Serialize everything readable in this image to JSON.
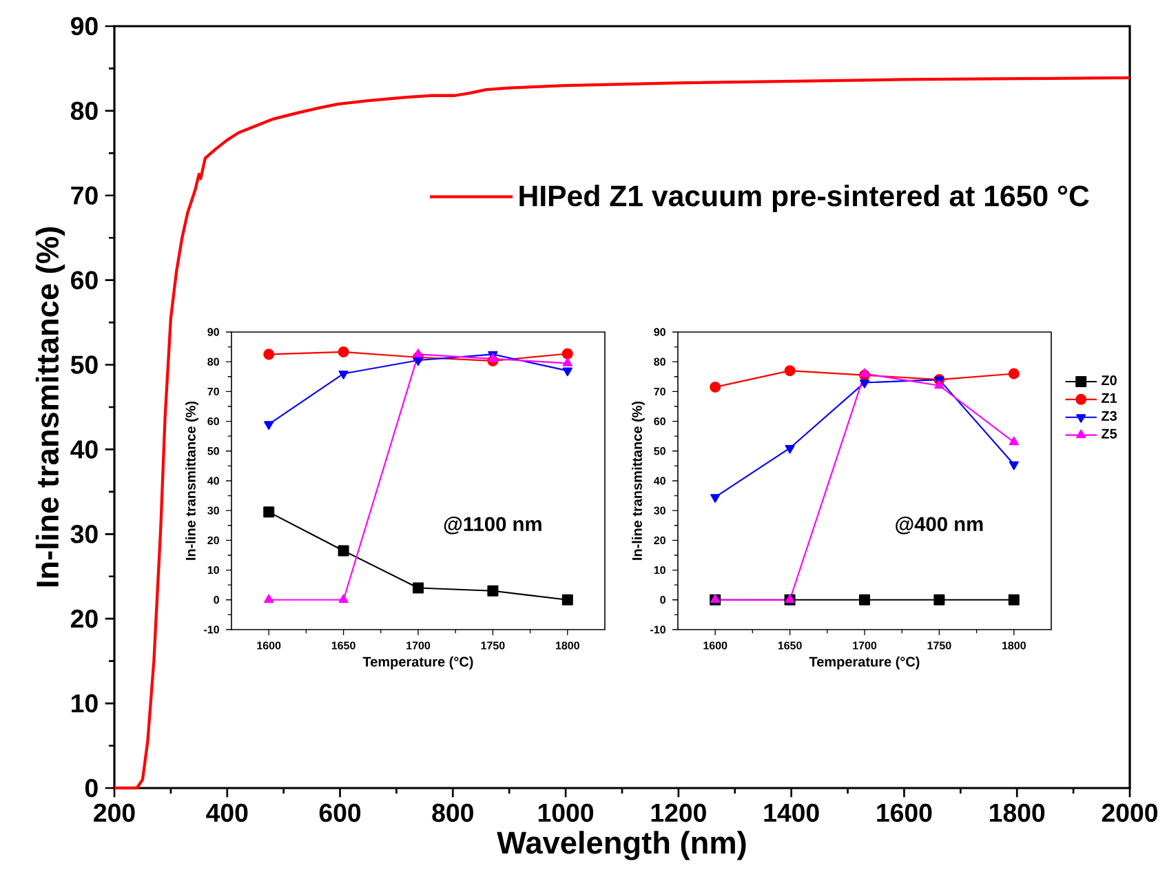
{
  "chart_data": [
    {
      "type": "line",
      "xlabel": "Wavelength (nm)",
      "ylabel": "In-line transmittance (%)",
      "xlim": [
        200,
        2000
      ],
      "ylim": [
        0,
        90
      ],
      "xticks": [
        200,
        400,
        600,
        800,
        1000,
        1200,
        1400,
        1600,
        1800,
        2000
      ],
      "yticks": [
        0,
        10,
        20,
        30,
        40,
        50,
        60,
        70,
        80,
        90
      ],
      "legend": "top right",
      "marker": "none",
      "grid": false,
      "series": [
        {
          "name": "HIPed Z1 vacuum pre-sintered at 1650 °C",
          "color": "#ff0000",
          "x": [
            200,
            240,
            250,
            259,
            270,
            282,
            290,
            300,
            310,
            320,
            330,
            343,
            350,
            353,
            361,
            380,
            399,
            420,
            446,
            480,
            521,
            560,
            596,
            650,
            718,
            760,
            803,
            830,
            859,
            900,
            1000,
            1200,
            1400,
            1600,
            1800,
            2000
          ],
          "values": [
            0,
            0,
            1,
            5.5,
            15,
            30.5,
            44,
            55.5,
            61,
            65,
            68,
            70.6,
            72.5,
            72,
            74.4,
            75.5,
            76.5,
            77.4,
            78.1,
            79,
            79.7,
            80.3,
            80.8,
            81.2,
            81.6,
            81.8,
            81.8,
            82.1,
            82.5,
            82.7,
            83.0,
            83.3,
            83.5,
            83.7,
            83.8,
            83.9
          ]
        }
      ]
    },
    {
      "type": "line",
      "xlabel": "Temperature (°C)",
      "ylabel": "In-line transmittance (%)",
      "xlim": [
        1575,
        1825
      ],
      "ylim": [
        -10,
        90
      ],
      "xticks": [
        1600,
        1650,
        1700,
        1750,
        1800
      ],
      "yticks": [
        -10,
        0,
        10,
        20,
        30,
        40,
        50,
        60,
        70,
        80,
        90
      ],
      "legend": false,
      "annotations": [
        "@1100 nm"
      ],
      "x": [
        1600,
        1650,
        1700,
        1750,
        1800
      ],
      "series": [
        {
          "color": "#000000",
          "marker": "square",
          "values": [
            29.5,
            16.5,
            4,
            3,
            0
          ]
        },
        {
          "color": "#ff0000",
          "marker": "circle",
          "values": [
            82.5,
            83.3,
            81.5,
            80.3,
            82.7
          ]
        },
        {
          "color": "#0000ff",
          "marker": "triangle-down",
          "values": [
            59,
            76,
            80.5,
            82.5,
            77
          ]
        },
        {
          "color": "#ff00ff",
          "marker": "triangle",
          "values": [
            0,
            0,
            82.5,
            81,
            79.5
          ]
        }
      ]
    },
    {
      "type": "line",
      "xlabel": "Temperature (°C)",
      "ylabel": "In-line transmittance (%)",
      "xlim": [
        1575,
        1825
      ],
      "ylim": [
        -10,
        90
      ],
      "xticks": [
        1600,
        1650,
        1700,
        1750,
        1800
      ],
      "yticks": [
        -10,
        0,
        10,
        20,
        30,
        40,
        50,
        60,
        70,
        80,
        90
      ],
      "legend": "right",
      "annotations": [
        "@400 nm"
      ],
      "x": [
        1600,
        1650,
        1700,
        1750,
        1800
      ],
      "series": [
        {
          "name": "Z0",
          "color": "#000000",
          "marker": "square",
          "values": [
            0,
            0,
            0,
            0,
            0
          ]
        },
        {
          "name": "Z1",
          "color": "#ff0000",
          "marker": "circle",
          "values": [
            71.5,
            77,
            75.5,
            74,
            76
          ]
        },
        {
          "name": "Z3",
          "color": "#0000ff",
          "marker": "triangle-down",
          "values": [
            34.5,
            51,
            73,
            74,
            45.5
          ]
        },
        {
          "name": "Z5",
          "color": "#ff00ff",
          "marker": "triangle",
          "values": [
            0,
            0,
            76,
            72,
            53
          ]
        }
      ]
    }
  ]
}
